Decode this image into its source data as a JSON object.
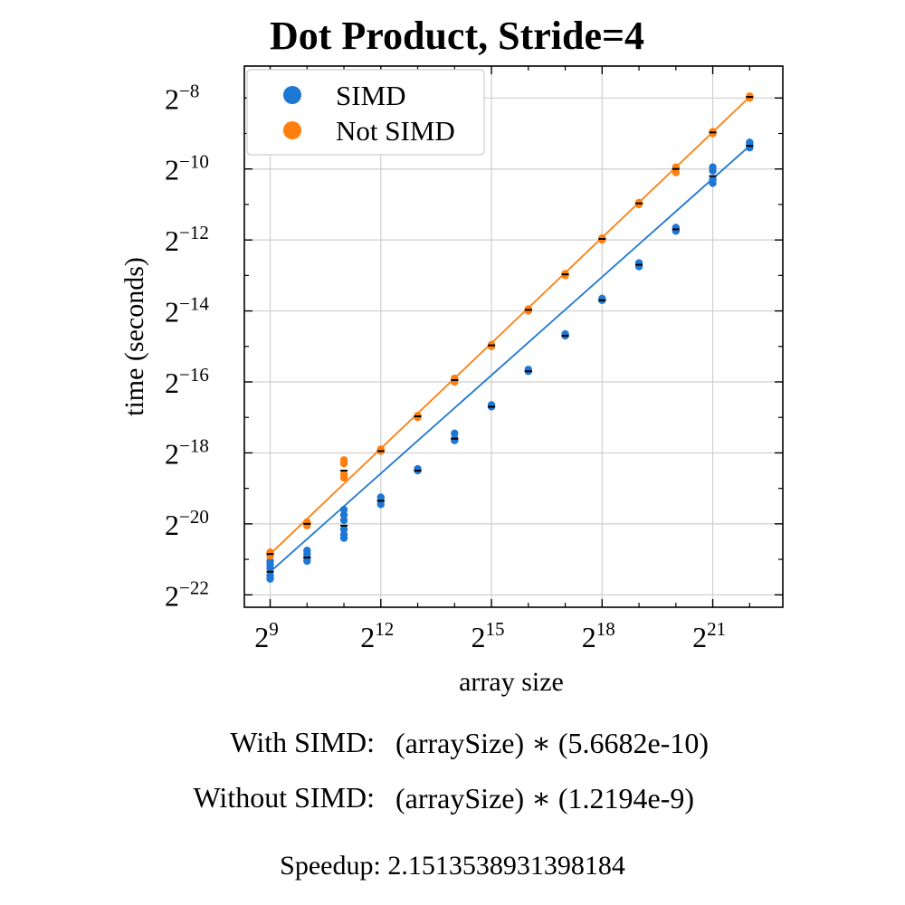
{
  "chart_data": {
    "type": "scatter",
    "title": "Dot Product, Stride=4",
    "xlabel": "array size",
    "ylabel": "time (seconds)",
    "x_scale": "log2",
    "y_scale": "log2",
    "x_ticks": [
      {
        "base": "2",
        "exp": "9",
        "value": 9
      },
      {
        "base": "2",
        "exp": "12",
        "value": 12
      },
      {
        "base": "2",
        "exp": "15",
        "value": 15
      },
      {
        "base": "2",
        "exp": "18",
        "value": 18
      },
      {
        "base": "2",
        "exp": "21",
        "value": 21
      }
    ],
    "y_ticks": [
      {
        "base": "2",
        "exp": "−8",
        "value": -8
      },
      {
        "base": "2",
        "exp": "−10",
        "value": -10
      },
      {
        "base": "2",
        "exp": "−12",
        "value": -12
      },
      {
        "base": "2",
        "exp": "−14",
        "value": -14
      },
      {
        "base": "2",
        "exp": "−16",
        "value": -16
      },
      {
        "base": "2",
        "exp": "−18",
        "value": -18
      },
      {
        "base": "2",
        "exp": "−20",
        "value": -20
      },
      {
        "base": "2",
        "exp": "−22",
        "value": -22
      }
    ],
    "xlim_log2": [
      8.3,
      22.9
    ],
    "ylim_log2": [
      -22.35,
      -7.1
    ],
    "grid": true,
    "legend_position": "top-left",
    "series": [
      {
        "name": "SIMD",
        "color": "#1f77d4",
        "points_log2": [
          [
            9,
            -21.05
          ],
          [
            9,
            -21.15
          ],
          [
            9,
            -21.25
          ],
          [
            9,
            -21.45
          ],
          [
            9,
            -21.55
          ],
          [
            10,
            -20.75
          ],
          [
            10,
            -20.85
          ],
          [
            10,
            -20.95
          ],
          [
            10,
            -21.05
          ],
          [
            11,
            -19.6
          ],
          [
            11,
            -19.75
          ],
          [
            11,
            -19.9
          ],
          [
            11,
            -20.15
          ],
          [
            11,
            -20.3
          ],
          [
            11,
            -20.4
          ],
          [
            12,
            -19.25
          ],
          [
            12,
            -19.35
          ],
          [
            12,
            -19.45
          ],
          [
            13,
            -18.45
          ],
          [
            13,
            -18.5
          ],
          [
            14,
            -17.45
          ],
          [
            14,
            -17.6
          ],
          [
            14,
            -17.65
          ],
          [
            15,
            -16.65
          ],
          [
            15,
            -16.7
          ],
          [
            16,
            -15.65
          ],
          [
            16,
            -15.7
          ],
          [
            17,
            -14.65
          ],
          [
            17,
            -14.7
          ],
          [
            18,
            -13.65
          ],
          [
            18,
            -13.7
          ],
          [
            19,
            -12.65
          ],
          [
            19,
            -12.75
          ],
          [
            20,
            -11.65
          ],
          [
            20,
            -11.75
          ],
          [
            21,
            -9.95
          ],
          [
            21,
            -10.05
          ],
          [
            21,
            -10.3
          ],
          [
            21,
            -10.4
          ],
          [
            22,
            -9.25
          ],
          [
            22,
            -9.3
          ],
          [
            22,
            -9.4
          ]
        ],
        "means_log2": [
          [
            9,
            -21.35
          ],
          [
            10,
            -20.95
          ],
          [
            11,
            -20.05
          ],
          [
            12,
            -19.35
          ],
          [
            13,
            -18.5
          ],
          [
            14,
            -17.6
          ],
          [
            15,
            -16.7
          ],
          [
            16,
            -15.7
          ],
          [
            17,
            -14.7
          ],
          [
            18,
            -13.7
          ],
          [
            19,
            -12.7
          ],
          [
            20,
            -11.7
          ],
          [
            21,
            -10.2
          ],
          [
            22,
            -9.35
          ]
        ],
        "fit_coefficient": "5.6682e-10"
      },
      {
        "name": "Not SIMD",
        "color": "#ff7f0e",
        "points_log2": [
          [
            9,
            -20.8
          ],
          [
            9,
            -20.9
          ],
          [
            10,
            -19.95
          ],
          [
            10,
            -20.05
          ],
          [
            11,
            -18.2
          ],
          [
            11,
            -18.3
          ],
          [
            11,
            -18.6
          ],
          [
            11,
            -18.7
          ],
          [
            12,
            -17.9
          ],
          [
            12,
            -17.95
          ],
          [
            13,
            -16.95
          ],
          [
            13,
            -17.0
          ],
          [
            14,
            -15.9
          ],
          [
            14,
            -16.0
          ],
          [
            15,
            -14.95
          ],
          [
            15,
            -15.0
          ],
          [
            16,
            -13.95
          ],
          [
            16,
            -14.0
          ],
          [
            17,
            -12.95
          ],
          [
            17,
            -13.0
          ],
          [
            18,
            -11.95
          ],
          [
            18,
            -12.0
          ],
          [
            19,
            -10.95
          ],
          [
            19,
            -11.0
          ],
          [
            20,
            -9.95
          ],
          [
            20,
            -10.1
          ],
          [
            21,
            -8.95
          ],
          [
            21,
            -9.0
          ],
          [
            22,
            -7.95
          ],
          [
            22,
            -8.0
          ]
        ],
        "means_log2": [
          [
            9,
            -20.85
          ],
          [
            10,
            -20.0
          ],
          [
            11,
            -18.5
          ],
          [
            12,
            -17.95
          ],
          [
            13,
            -16.97
          ],
          [
            14,
            -15.95
          ],
          [
            15,
            -14.97
          ],
          [
            16,
            -13.97
          ],
          [
            17,
            -12.97
          ],
          [
            18,
            -11.97
          ],
          [
            19,
            -10.97
          ],
          [
            20,
            -10.0
          ],
          [
            21,
            -8.97
          ],
          [
            22,
            -7.97
          ]
        ],
        "fit_coefficient": "1.2194e-9"
      }
    ]
  },
  "equations": {
    "with_label": "With SIMD:",
    "with_formula": "(arraySize) ∗ (5.6682e-10)",
    "without_label": "Without SIMD:",
    "without_formula": "(arraySize) ∗ (1.2194e-9)",
    "speedup": "Speedup: 2.1513538931398184"
  }
}
